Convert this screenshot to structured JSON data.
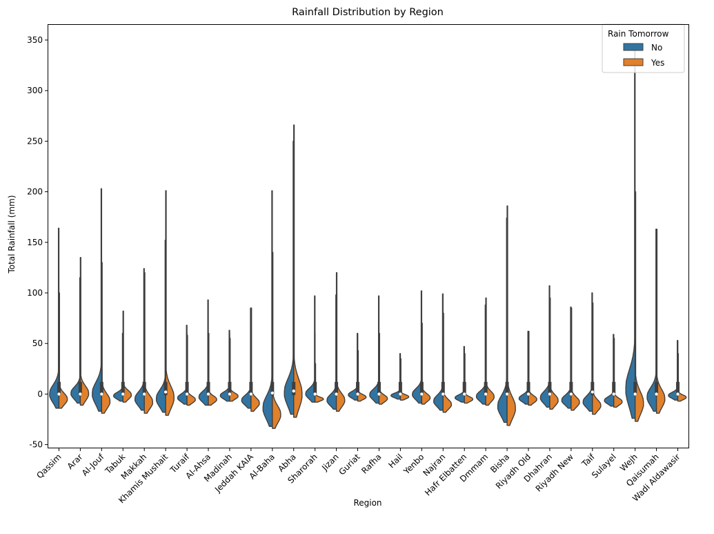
{
  "chart_data": {
    "type": "violin",
    "title": "Rainfall Distribution by Region",
    "xlabel": "Region",
    "ylabel": "Total Rainfall (mm)",
    "ylim": [
      -53,
      365
    ],
    "yticks": [
      -50,
      0,
      50,
      100,
      150,
      200,
      250,
      300,
      350
    ],
    "legend": {
      "title": "Rain Tomorrow",
      "placement": "top-right",
      "entries": [
        "No",
        "Yes"
      ]
    },
    "colors": {
      "No": "#3274a1",
      "Yes": "#e1812c",
      "outline": "#3f3f3f"
    },
    "categories": [
      "Qassim",
      "Arar",
      "Al-Jouf",
      "Tabuk",
      "Makkah",
      "Khamis Mushait",
      "Turaif",
      "Al-Ahsa",
      "Madinah",
      "Jeddah KAIA",
      "Al-Baha",
      "Abha",
      "Sharorah",
      "Jizan",
      "Guriat",
      "Rafha",
      "Hail",
      "Yenbo",
      "Najran",
      "Hafr Elbatten",
      "Dmmam",
      "Bisha",
      "Riyadh Old",
      "Dhahran",
      "Riyadh New",
      "Taif",
      "Sulayel",
      "Wejh",
      "Qaisumah",
      "Wadi Aldawasir"
    ],
    "series": [
      {
        "name": "No",
        "min": [
          -14,
          -9,
          -17,
          -7,
          -16,
          -18,
          -10,
          -11,
          -7,
          -14,
          -32,
          -20,
          -8,
          -15,
          -6,
          -9,
          -5,
          -9,
          -16,
          -8,
          -10,
          -28,
          -10,
          -13,
          -14,
          -17,
          -12,
          -24,
          -17,
          -6
        ],
        "max": [
          164,
          115,
          203,
          60,
          124,
          152,
          68,
          93,
          63,
          85,
          201,
          250,
          97,
          98,
          60,
          97,
          40,
          102,
          99,
          47,
          88,
          174,
          62,
          107,
          86,
          100,
          59,
          345,
          163,
          53
        ],
        "median": [
          0,
          0,
          0,
          0,
          0,
          1,
          0,
          0,
          0,
          0,
          1,
          1,
          0,
          0,
          0,
          0,
          0,
          0,
          0,
          0,
          0,
          0,
          0,
          0,
          0,
          1,
          0,
          0,
          0,
          0
        ]
      },
      {
        "name": "Yes",
        "min": [
          -14,
          -11,
          -19,
          -8,
          -19,
          -21,
          -11,
          -11,
          -7,
          -17,
          -34,
          -23,
          -8,
          -17,
          -7,
          -10,
          -6,
          -10,
          -18,
          -9,
          -11,
          -31,
          -11,
          -15,
          -16,
          -20,
          -13,
          -27,
          -19,
          -7
        ],
        "max": [
          100,
          135,
          130,
          82,
          120,
          201,
          58,
          60,
          55,
          85,
          140,
          266,
          30,
          120,
          43,
          60,
          35,
          70,
          80,
          40,
          95,
          186,
          62,
          95,
          85,
          90,
          55,
          200,
          163,
          40
        ],
        "median": [
          0,
          0,
          0,
          0,
          0,
          2,
          0,
          0,
          0,
          0,
          1,
          3,
          0,
          0,
          0,
          0,
          0,
          0,
          0,
          0,
          0,
          0,
          0,
          0,
          0,
          2,
          0,
          0,
          0,
          0
        ]
      }
    ],
    "grid": false
  }
}
